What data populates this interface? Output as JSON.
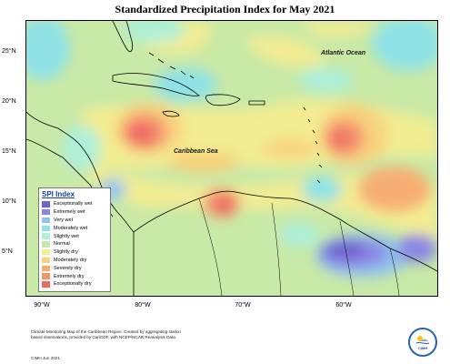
{
  "title": "Standardized Precipitation Index for May 2021",
  "map": {
    "lat_labels": [
      "25°N",
      "20°N",
      "15°N",
      "10°N",
      "5°N"
    ],
    "lon_labels": [
      "90°W",
      "80°W",
      "70°W",
      "60°W"
    ],
    "ocean_label": "Atlantic Ocean",
    "sea_label": "Caribbean Sea"
  },
  "legend": {
    "title": "SPI Index",
    "items": [
      {
        "label": "Exceptionally wet",
        "color": "#6e64cf"
      },
      {
        "label": "Extremely wet",
        "color": "#8b86e4"
      },
      {
        "label": "Very wet",
        "color": "#8fc4ee"
      },
      {
        "label": "Moderately wet",
        "color": "#8fe2e6"
      },
      {
        "label": "Slightly wet",
        "color": "#aef0d8"
      },
      {
        "label": "Normal",
        "color": "#c9e9a6"
      },
      {
        "label": "Slightly dry",
        "color": "#f2ec92"
      },
      {
        "label": "Moderately dry",
        "color": "#f8d27e"
      },
      {
        "label": "Severely dry",
        "color": "#f7ad72"
      },
      {
        "label": "Extremely dry",
        "color": "#f4926e"
      },
      {
        "label": "Exceptionally dry",
        "color": "#ee6a64"
      }
    ]
  },
  "footnote": "Climate Monitoring Map of the Caribbean Region. Created by aggregating station based observations, provided by CariCOF, with NCEP/NCAR Reanalysis Data.",
  "copyright": "CIMH  Jun 2021",
  "logo_text": "CIMH"
}
